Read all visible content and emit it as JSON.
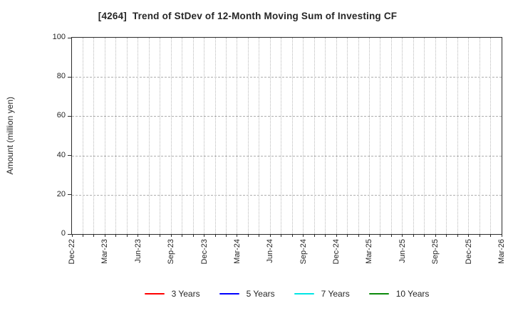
{
  "chart_data": {
    "type": "line",
    "title": "[4264]  Trend of StDev of 12-Month Moving Sum of Investing CF",
    "ylabel": "Amount (million yen)",
    "ylim": [
      0,
      100
    ],
    "yticks": [
      0,
      20,
      40,
      60,
      80,
      100
    ],
    "x_axis": {
      "tick_labels": [
        "Dec-22",
        "Mar-23",
        "Jun-23",
        "Sep-23",
        "Dec-23",
        "Mar-24",
        "Jun-24",
        "Sep-24",
        "Dec-24",
        "Mar-25",
        "Jun-25",
        "Sep-25",
        "Dec-25",
        "Mar-26"
      ],
      "tick_interval_months": 3,
      "months_total": 39,
      "minor_grid": "monthly"
    },
    "grid": true,
    "legend_position": "bottom",
    "series": [
      {
        "name": "3 Years",
        "color": "#ff0000",
        "values": []
      },
      {
        "name": "5 Years",
        "color": "#0000ff",
        "values": []
      },
      {
        "name": "7 Years",
        "color": "#00e5e5",
        "values": []
      },
      {
        "name": "10 Years",
        "color": "#0b8a0b",
        "values": []
      }
    ]
  }
}
